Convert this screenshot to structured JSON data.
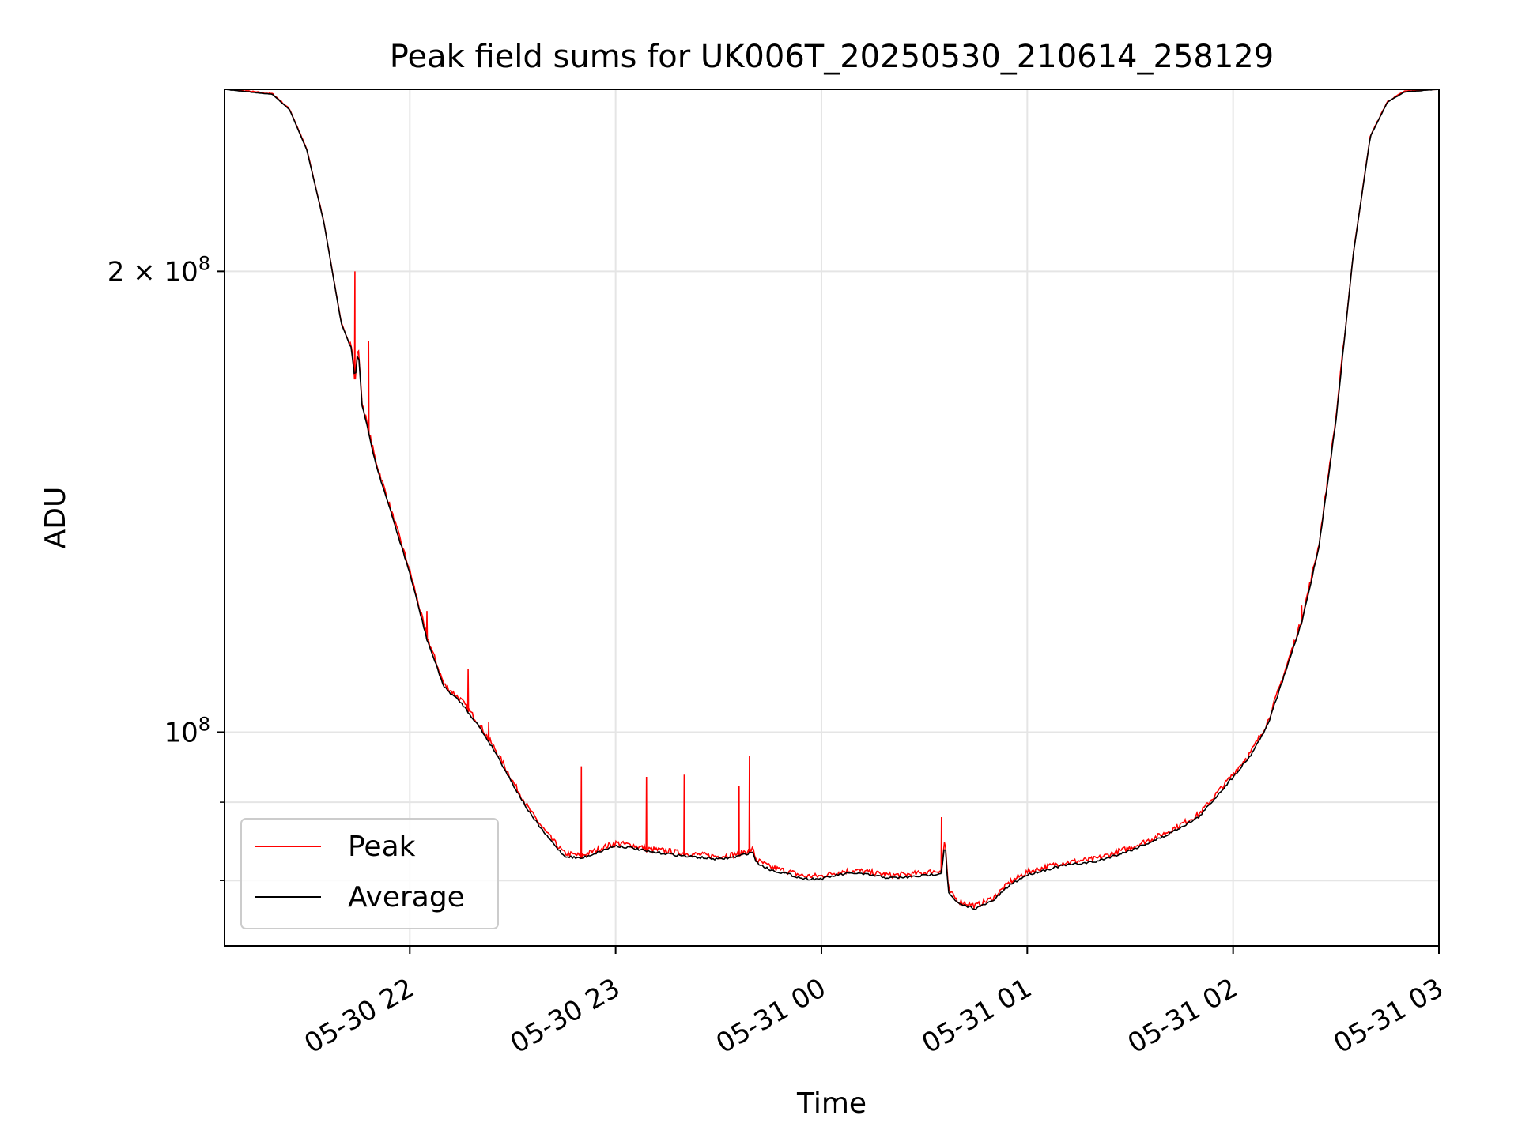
{
  "chart_data": {
    "type": "line",
    "title": "Peak field sums for UK006T_20250530_210614_258129",
    "xlabel": "Time",
    "ylabel": "ADU",
    "yscale": "log",
    "ylim": [
      72500000,
      263000000
    ],
    "xlim": [
      "2025-05-30 21:06",
      "2025-05-31 03:00"
    ],
    "grid": true,
    "legend_position": "lower-left",
    "x_ticks": [
      "05-30 22",
      "05-30 23",
      "05-31 00",
      "05-31 01",
      "05-31 02",
      "05-31 03"
    ],
    "y_ticks": [
      {
        "value": 100000000,
        "base": "10",
        "exp": "8"
      },
      {
        "value": 200000000,
        "base": "2 × 10",
        "exp": "8"
      }
    ],
    "y_minor_ticks": [
      80000000,
      90000000
    ],
    "colors": {
      "peak": "#ff0000",
      "average": "#000000",
      "grid": "#e5e5e5"
    },
    "series": [
      {
        "name": "Average",
        "color": "#000000",
        "points": [
          [
            "2025-05-30 21:06",
            263000000
          ],
          [
            "2025-05-30 21:20",
            261000000
          ],
          [
            "2025-05-30 21:25",
            255000000
          ],
          [
            "2025-05-30 21:30",
            240000000
          ],
          [
            "2025-05-30 21:35",
            215000000
          ],
          [
            "2025-05-30 21:40",
            185000000
          ],
          [
            "2025-05-30 21:43",
            178000000
          ],
          [
            "2025-05-30 21:44",
            170000000
          ],
          [
            "2025-05-30 21:45",
            178000000
          ],
          [
            "2025-05-30 21:46",
            164000000
          ],
          [
            "2025-05-30 21:50",
            150000000
          ],
          [
            "2025-05-30 22:00",
            127000000
          ],
          [
            "2025-05-30 22:05",
            115000000
          ],
          [
            "2025-05-30 22:10",
            107000000
          ],
          [
            "2025-05-30 22:15",
            104500000
          ],
          [
            "2025-05-30 22:20",
            101000000
          ],
          [
            "2025-05-30 22:25",
            97000000
          ],
          [
            "2025-05-30 22:30",
            92500000
          ],
          [
            "2025-05-30 22:35",
            88500000
          ],
          [
            "2025-05-30 22:40",
            85500000
          ],
          [
            "2025-05-30 22:45",
            83000000
          ],
          [
            "2025-05-30 22:50",
            82700000
          ],
          [
            "2025-05-30 22:55",
            83500000
          ],
          [
            "2025-05-30 23:00",
            84300000
          ],
          [
            "2025-05-30 23:05",
            84000000
          ],
          [
            "2025-05-30 23:10",
            83500000
          ],
          [
            "2025-05-30 23:15",
            83300000
          ],
          [
            "2025-05-30 23:20",
            83000000
          ],
          [
            "2025-05-30 23:25",
            82800000
          ],
          [
            "2025-05-30 23:30",
            82600000
          ],
          [
            "2025-05-30 23:35",
            82900000
          ],
          [
            "2025-05-30 23:40",
            83500000
          ],
          [
            "2025-05-30 23:41",
            82200000
          ],
          [
            "2025-05-30 23:45",
            81300000
          ],
          [
            "2025-05-30 23:50",
            80800000
          ],
          [
            "2025-05-30 23:55",
            80200000
          ],
          [
            "2025-05-31 00:00",
            80200000
          ],
          [
            "2025-05-31 00:05",
            80700000
          ],
          [
            "2025-05-31 00:10",
            80900000
          ],
          [
            "2025-05-31 00:15",
            80600000
          ],
          [
            "2025-05-31 00:20",
            80300000
          ],
          [
            "2025-05-31 00:25",
            80400000
          ],
          [
            "2025-05-31 00:30",
            80600000
          ],
          [
            "2025-05-31 00:35",
            80900000
          ],
          [
            "2025-05-31 00:36",
            85000000
          ],
          [
            "2025-05-31 00:37",
            78500000
          ],
          [
            "2025-05-31 00:40",
            77200000
          ],
          [
            "2025-05-31 00:45",
            76700000
          ],
          [
            "2025-05-31 00:50",
            77600000
          ],
          [
            "2025-05-31 00:55",
            79500000
          ],
          [
            "2025-05-31 01:00",
            80700000
          ],
          [
            "2025-05-31 01:10",
            81800000
          ],
          [
            "2025-05-31 01:20",
            82300000
          ],
          [
            "2025-05-31 01:30",
            83700000
          ],
          [
            "2025-05-31 01:40",
            85500000
          ],
          [
            "2025-05-31 01:50",
            88000000
          ],
          [
            "2025-05-31 02:00",
            93500000
          ],
          [
            "2025-05-31 02:05",
            96500000
          ],
          [
            "2025-05-31 02:10",
            101000000
          ],
          [
            "2025-05-31 02:15",
            109000000
          ],
          [
            "2025-05-31 02:20",
            118000000
          ],
          [
            "2025-05-31 02:25",
            132000000
          ],
          [
            "2025-05-31 02:30",
            160000000
          ],
          [
            "2025-05-31 02:35",
            205000000
          ],
          [
            "2025-05-31 02:40",
            245000000
          ],
          [
            "2025-05-31 02:45",
            258000000
          ],
          [
            "2025-05-31 02:50",
            262000000
          ],
          [
            "2025-05-31 03:00",
            263000000
          ]
        ]
      },
      {
        "name": "Peak",
        "color": "#ff0000",
        "spikes": [
          [
            "2025-05-30 21:44",
            200000000
          ],
          [
            "2025-05-30 21:48",
            180000000
          ],
          [
            "2025-05-30 22:05",
            120000000
          ],
          [
            "2025-05-30 22:17",
            110000000
          ],
          [
            "2025-05-30 22:23",
            101500000
          ],
          [
            "2025-05-30 22:50",
            95000000
          ],
          [
            "2025-05-30 23:09",
            93500000
          ],
          [
            "2025-05-30 23:20",
            93800000
          ],
          [
            "2025-05-30 23:36",
            92200000
          ],
          [
            "2025-05-30 23:39",
            96500000
          ],
          [
            "2025-05-31 00:35",
            88000000
          ],
          [
            "2025-05-31 02:20",
            121000000
          ]
        ]
      }
    ]
  }
}
